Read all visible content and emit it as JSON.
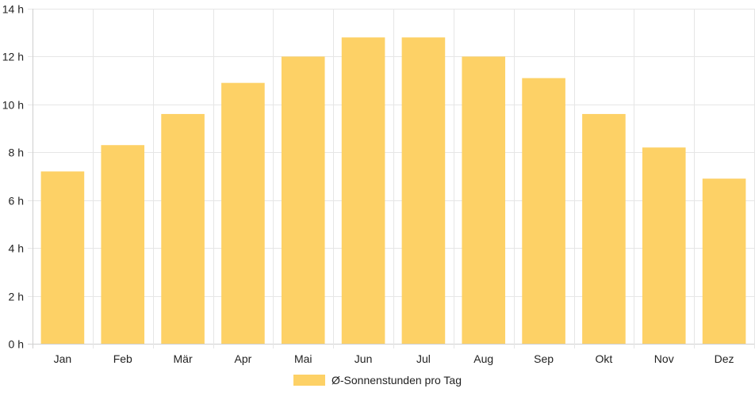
{
  "chart_data": {
    "type": "bar",
    "categories": [
      "Jan",
      "Feb",
      "Mär",
      "Apr",
      "Mai",
      "Jun",
      "Jul",
      "Aug",
      "Sep",
      "Okt",
      "Nov",
      "Dez"
    ],
    "series": [
      {
        "name": "Ø-Sonnenstunden pro Tag",
        "color": "#fdd166",
        "values": [
          7.2,
          8.3,
          9.6,
          10.9,
          12.0,
          12.8,
          12.8,
          12.0,
          11.1,
          9.6,
          8.2,
          6.9
        ]
      }
    ],
    "ylim": [
      0,
      14
    ],
    "yticks": [
      0,
      2,
      4,
      6,
      8,
      10,
      12,
      14
    ],
    "ytick_suffix": " h",
    "grid": true,
    "legend_position": "bottom"
  }
}
